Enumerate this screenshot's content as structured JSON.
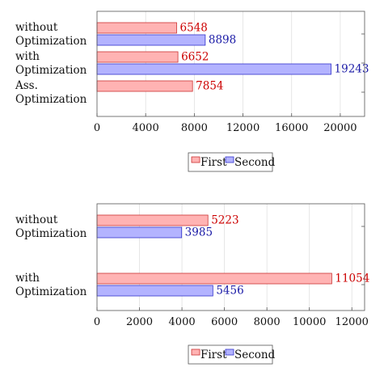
{
  "colors": {
    "first_fill": "#ffb3b3",
    "first_stroke": "#cc3333",
    "first_text": "#cc0000",
    "second_fill": "#b3b3ff",
    "second_stroke": "#3333cc",
    "second_text": "#1a1aa6"
  },
  "chart_data": [
    {
      "type": "bar",
      "orientation": "horizontal",
      "categories": [
        "without Optimization",
        "with Optimization",
        "Ass. Optimization"
      ],
      "category_lines": [
        [
          "without",
          "Optimization"
        ],
        [
          "with",
          "Optimization"
        ],
        [
          "Ass.",
          "Optimization"
        ]
      ],
      "series": [
        {
          "name": "First",
          "values": [
            6548,
            6652,
            7854
          ]
        },
        {
          "name": "Second",
          "values": [
            8898,
            19243,
            null
          ]
        }
      ],
      "xlim": [
        0,
        22000
      ],
      "xticks": [
        0,
        4000,
        8000,
        12000,
        16000,
        20000
      ],
      "grid": true,
      "legend": "bottom-center",
      "xlabel": "",
      "ylabel": ""
    },
    {
      "type": "bar",
      "orientation": "horizontal",
      "categories": [
        "without Optimization",
        "with Optimization"
      ],
      "category_lines": [
        [
          "without",
          "Optimization"
        ],
        [
          "with",
          "Optimization"
        ]
      ],
      "series": [
        {
          "name": "First",
          "values": [
            5223,
            11054
          ]
        },
        {
          "name": "Second",
          "values": [
            3985,
            5456
          ]
        }
      ],
      "xlim": [
        0,
        12600
      ],
      "xticks": [
        0,
        2000,
        4000,
        6000,
        8000,
        10000,
        12000
      ],
      "grid": true,
      "legend": "bottom-center",
      "xlabel": "",
      "ylabel": ""
    }
  ]
}
